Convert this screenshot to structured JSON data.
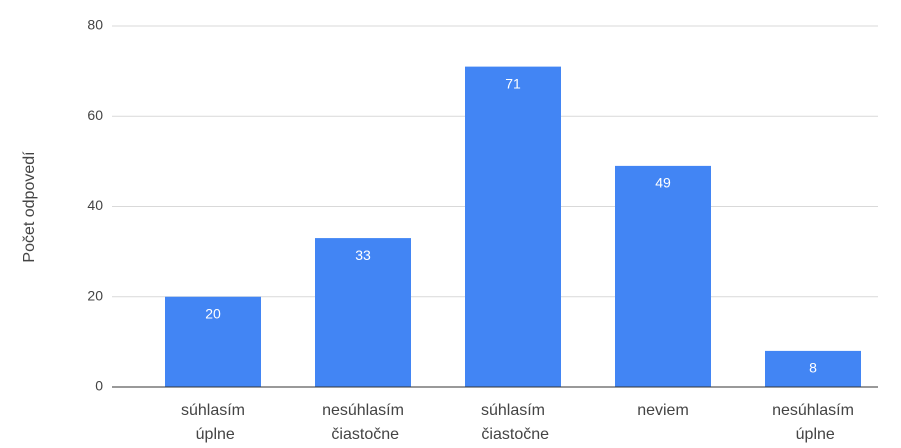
{
  "chart_data": {
    "type": "bar",
    "y_label": "Počet odpovedí",
    "categories": [
      "súhlasím úplne",
      "nesúhlasím čiastočne",
      "súhlasím čiastočne",
      "neviem",
      "nesúhlasím úplne"
    ],
    "values": [
      20,
      33,
      71,
      49,
      8
    ],
    "color": "#4285f4",
    "ylim": [
      0,
      80
    ],
    "yticks": [
      0,
      20,
      40,
      60,
      80
    ],
    "grid": true
  }
}
